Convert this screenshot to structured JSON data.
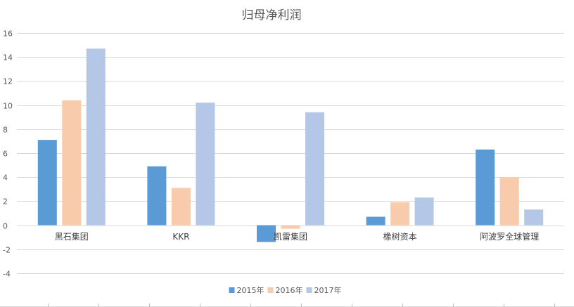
{
  "chart_data": {
    "type": "bar",
    "title": "归母净利润",
    "xlabel": "",
    "ylabel": "",
    "categories": [
      "黑石集团",
      "KKR",
      "凯雷集团",
      "橡树资本",
      "阿波罗全球管理"
    ],
    "series": [
      {
        "name": "2015年",
        "color": "#5b9bd5",
        "values": [
          7.1,
          4.9,
          -1.4,
          0.7,
          6.3
        ]
      },
      {
        "name": "2016年",
        "color": "#f8cbad",
        "values": [
          10.4,
          3.1,
          -0.3,
          1.9,
          4.0
        ]
      },
      {
        "name": "2017年",
        "color": "#b4c7e7",
        "values": [
          14.7,
          10.2,
          9.4,
          2.3,
          1.3
        ]
      }
    ],
    "ylim": [
      -5,
      16
    ],
    "yticks": [
      -4,
      -2,
      0,
      2,
      4,
      6,
      8,
      10,
      12,
      14,
      16
    ],
    "grid": true,
    "legend_position": "bottom"
  }
}
